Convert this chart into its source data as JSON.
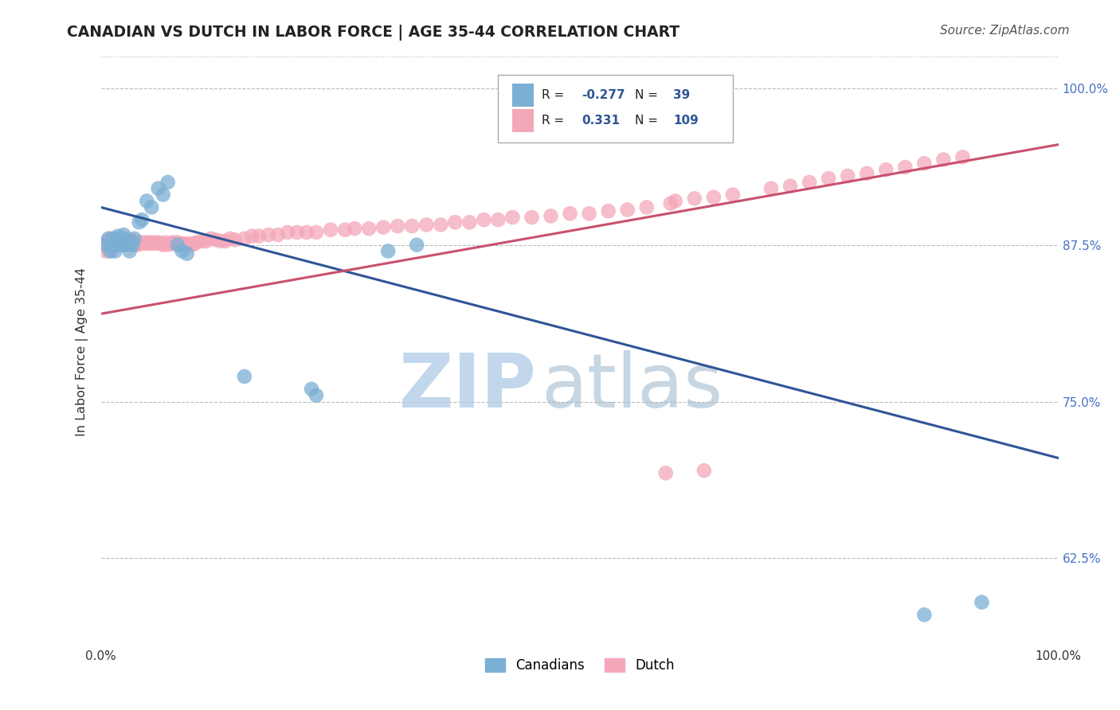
{
  "title": "CANADIAN VS DUTCH IN LABOR FORCE | AGE 35-44 CORRELATION CHART",
  "source": "Source: ZipAtlas.com",
  "ylabel": "In Labor Force | Age 35-44",
  "xlim": [
    0.0,
    1.0
  ],
  "ylim": [
    0.555,
    1.025
  ],
  "yticks": [
    0.625,
    0.75,
    0.875,
    1.0
  ],
  "ytick_labels": [
    "62.5%",
    "75.0%",
    "87.5%",
    "100.0%"
  ],
  "canadian_color": "#7bafd4",
  "dutch_color": "#f4a7b9",
  "canadian_line_color": "#2f5597",
  "dutch_line_color": "#c9506e",
  "background_color": "#ffffff",
  "grid_color": "#bbbbbb",
  "title_color": "#222222",
  "ca_x": [
    0.005,
    0.008,
    0.01,
    0.012,
    0.013,
    0.015,
    0.015,
    0.017,
    0.018,
    0.018,
    0.02,
    0.02,
    0.022,
    0.023,
    0.024,
    0.025,
    0.026,
    0.028,
    0.03,
    0.032,
    0.033,
    0.035,
    0.04,
    0.043,
    0.048,
    0.053,
    0.06,
    0.065,
    0.07,
    0.08,
    0.085,
    0.09,
    0.15,
    0.22,
    0.225,
    0.3,
    0.33,
    0.86,
    0.92
  ],
  "ca_y": [
    0.875,
    0.88,
    0.87,
    0.875,
    0.88,
    0.87,
    0.875,
    0.878,
    0.875,
    0.882,
    0.875,
    0.878,
    0.875,
    0.88,
    0.883,
    0.875,
    0.878,
    0.875,
    0.87,
    0.878,
    0.875,
    0.88,
    0.893,
    0.895,
    0.91,
    0.905,
    0.92,
    0.915,
    0.925,
    0.875,
    0.87,
    0.868,
    0.77,
    0.76,
    0.755,
    0.87,
    0.875,
    0.58,
    0.59
  ],
  "du_x": [
    0.004,
    0.005,
    0.006,
    0.007,
    0.008,
    0.009,
    0.01,
    0.01,
    0.012,
    0.013,
    0.015,
    0.015,
    0.017,
    0.018,
    0.02,
    0.02,
    0.022,
    0.023,
    0.025,
    0.025,
    0.027,
    0.028,
    0.03,
    0.032,
    0.034,
    0.035,
    0.037,
    0.038,
    0.04,
    0.042,
    0.045,
    0.048,
    0.05,
    0.052,
    0.055,
    0.057,
    0.06,
    0.063,
    0.065,
    0.067,
    0.07,
    0.073,
    0.075,
    0.078,
    0.08,
    0.083,
    0.085,
    0.088,
    0.09,
    0.093,
    0.095,
    0.098,
    0.1,
    0.105,
    0.11,
    0.115,
    0.12,
    0.125,
    0.13,
    0.135,
    0.14,
    0.15,
    0.158,
    0.165,
    0.175,
    0.185,
    0.195,
    0.205,
    0.215,
    0.225,
    0.24,
    0.255,
    0.265,
    0.28,
    0.295,
    0.31,
    0.325,
    0.34,
    0.355,
    0.37,
    0.385,
    0.4,
    0.415,
    0.43,
    0.45,
    0.47,
    0.49,
    0.51,
    0.53,
    0.55,
    0.57,
    0.595,
    0.6,
    0.62,
    0.64,
    0.66,
    0.59,
    0.63,
    0.7,
    0.72,
    0.74,
    0.76,
    0.78,
    0.8,
    0.82,
    0.84,
    0.86,
    0.88,
    0.9
  ],
  "du_y": [
    0.875,
    0.87,
    0.875,
    0.878,
    0.875,
    0.87,
    0.875,
    0.88,
    0.875,
    0.878,
    0.875,
    0.88,
    0.875,
    0.878,
    0.875,
    0.878,
    0.876,
    0.878,
    0.875,
    0.878,
    0.876,
    0.88,
    0.876,
    0.878,
    0.875,
    0.878,
    0.876,
    0.875,
    0.877,
    0.876,
    0.877,
    0.876,
    0.877,
    0.876,
    0.877,
    0.876,
    0.877,
    0.876,
    0.875,
    0.877,
    0.875,
    0.876,
    0.877,
    0.876,
    0.877,
    0.875,
    0.876,
    0.876,
    0.875,
    0.876,
    0.875,
    0.876,
    0.877,
    0.878,
    0.878,
    0.88,
    0.879,
    0.878,
    0.878,
    0.88,
    0.879,
    0.88,
    0.882,
    0.882,
    0.883,
    0.883,
    0.885,
    0.885,
    0.885,
    0.885,
    0.887,
    0.887,
    0.888,
    0.888,
    0.889,
    0.89,
    0.89,
    0.891,
    0.891,
    0.893,
    0.893,
    0.895,
    0.895,
    0.897,
    0.897,
    0.898,
    0.9,
    0.9,
    0.902,
    0.903,
    0.905,
    0.908,
    0.91,
    0.912,
    0.913,
    0.915,
    0.693,
    0.695,
    0.92,
    0.922,
    0.925,
    0.928,
    0.93,
    0.932,
    0.935,
    0.937,
    0.94,
    0.943,
    0.945
  ]
}
